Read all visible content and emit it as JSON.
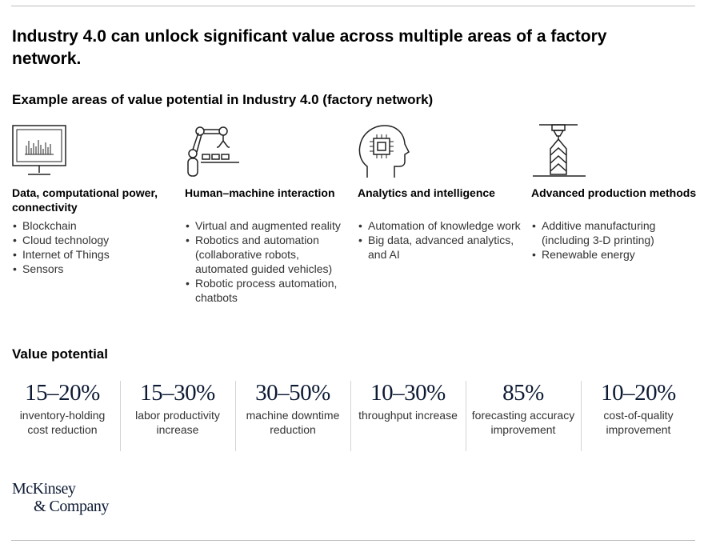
{
  "headline": "Industry 4.0 can unlock significant value across multiple areas of a factory network.",
  "subheadline": "Example areas of value potential in Industry 4.0 (factory network)",
  "areas": [
    {
      "icon": "monitor-chart-icon",
      "title": "Data, computational power, connectivity",
      "items": [
        "Blockchain",
        "Cloud technology",
        "Internet of Things",
        "Sensors"
      ]
    },
    {
      "icon": "robot-arm-icon",
      "title": "Human–machine interaction",
      "items": [
        "Virtual and augmented reality",
        "Robotics and automation (collaborative robots, automated guided vehicles)",
        "Robotic process automation, chatbots"
      ]
    },
    {
      "icon": "head-chip-icon",
      "title": "Analytics and intelligence",
      "items": [
        "Automation of knowledge work",
        "Big data, advanced analytics, and AI"
      ]
    },
    {
      "icon": "3d-printer-icon",
      "title": "Advanced production methods",
      "items": [
        "Additive manufacturing (including 3-D printing)",
        "Renewable energy"
      ]
    }
  ],
  "value_potential_label": "Value potential",
  "stats": [
    {
      "value": "15–20%",
      "label": "inventory-holding cost reduction"
    },
    {
      "value": "15–30%",
      "label": "labor productivity increase"
    },
    {
      "value": "30–50%",
      "label": "machine downtime reduction"
    },
    {
      "value": "10–30%",
      "label": "throughput increase"
    },
    {
      "value": "85%",
      "label": "forecasting accuracy improvement"
    },
    {
      "value": "10–20%",
      "label": "cost-of-quality improvement"
    }
  ],
  "brand": {
    "line1": "McKinsey",
    "line2": "& Company"
  },
  "colors": {
    "accent": "#0d1a33",
    "text": "#333333",
    "rule": "#bdbdbd"
  }
}
